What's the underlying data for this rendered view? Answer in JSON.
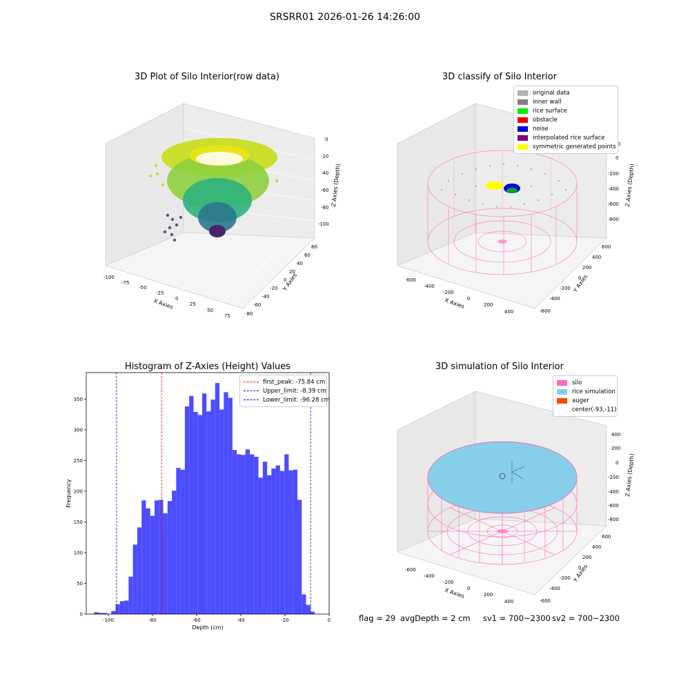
{
  "suptitle": "SRSRR01 2026-01-26 14:26:00",
  "panels": {
    "raw": {
      "title": "3D Plot of Silo Interior(row data)",
      "xlabel": "X Axies",
      "ylabel": "Y Axies",
      "zlabel": "Z Axies (Depth)",
      "xticks": [
        "-100",
        "-75",
        "-50",
        "-25",
        "0",
        "25",
        "50",
        "75"
      ],
      "yticks": [
        "80",
        "60",
        "40",
        "20",
        "0",
        "-20",
        "-40",
        "-60",
        "-80"
      ],
      "zticks": [
        "0",
        "-20",
        "-40",
        "-60",
        "-80",
        "-100"
      ]
    },
    "classify": {
      "title": "3D classify of Silo Interior",
      "xlabel": "X Axies",
      "ylabel": "Y Axies",
      "zlabel": "Z Axies (Depth)",
      "xticks": [
        "-600",
        "-400",
        "-200",
        "0",
        "200",
        "400"
      ],
      "yticks": [
        "600",
        "400",
        "200",
        "0",
        "-200",
        "-400",
        "-600"
      ],
      "zticks": [
        "200",
        "0",
        "-200",
        "-400",
        "-600",
        "-800"
      ],
      "legend": [
        {
          "label": "original data",
          "color": "#b3b3b3"
        },
        {
          "label": "inner wall",
          "color": "#808080"
        },
        {
          "label": "rice surface",
          "color": "#00ee00"
        },
        {
          "label": "obstacle",
          "color": "#ee0000"
        },
        {
          "label": "noise",
          "color": "#0000dd"
        },
        {
          "label": "interpolated rice surface",
          "color": "#800080"
        },
        {
          "label": "symmetric generated points",
          "color": "#ffff00"
        }
      ]
    },
    "simulation": {
      "title": "3D simulation of Silo Interior",
      "xlabel": "X Axies",
      "ylabel": "Y Axies",
      "zlabel": "Z Axies (Depth)",
      "xticks": [
        "-600",
        "-400",
        "-200",
        "0",
        "200",
        "400"
      ],
      "yticks": [
        "600",
        "400",
        "200",
        "0",
        "-200",
        "-400",
        "-600"
      ],
      "zticks": [
        "400",
        "200",
        "0",
        "-200",
        "-400",
        "-600",
        "-800"
      ],
      "legend": [
        {
          "label": "silo",
          "color": "#ff69b4"
        },
        {
          "label": "rice simulation",
          "color": "#87ceeb"
        },
        {
          "label": "auger",
          "color": "#ff4500"
        },
        {
          "label": "center(-93,-11)",
          "color": "#ffffff"
        }
      ]
    }
  },
  "status": {
    "flag": "flag = 29",
    "avg_depth": "avgDepth = 2 cm",
    "sv1": "sv1 = 700~2300",
    "sv2": "sv2 = 700~2300"
  },
  "chart_data": {
    "type": "bar",
    "title": "Histogram of Z-Axies (Height) Values",
    "xlabel": "Depth (cm)",
    "ylabel": "Frequency",
    "xlim": [
      -110,
      0
    ],
    "ylim": [
      0,
      393
    ],
    "xticks": [
      -100,
      -80,
      -60,
      -40,
      -20,
      0
    ],
    "yticks": [
      0,
      50,
      100,
      150,
      200,
      250,
      300,
      350
    ],
    "bar_color": "#4d4dff",
    "bin_start": -106.5,
    "bin_width": 1.96,
    "values": [
      3,
      2,
      2,
      0,
      5,
      16,
      21,
      22,
      61,
      113,
      141,
      185,
      172,
      160,
      185,
      186,
      164,
      184,
      201,
      238,
      235,
      338,
      355,
      329,
      324,
      359,
      330,
      349,
      376,
      333,
      361,
      352,
      267,
      260,
      259,
      268,
      260,
      256,
      222,
      248,
      226,
      237,
      242,
      233,
      260,
      234,
      235,
      186,
      32,
      15,
      4
    ],
    "vlines": [
      {
        "label": "first_peak: -75.84 cm",
        "x": -75.84,
        "color": "#ff0000"
      },
      {
        "label": "Upper_limit: -8.39 cm",
        "x": -8.39,
        "color": "#0000ff"
      },
      {
        "label": "Lower_limit: -96.28 cm",
        "x": -96.28,
        "color": "#0000ff"
      }
    ],
    "legend_position": "upper right"
  }
}
